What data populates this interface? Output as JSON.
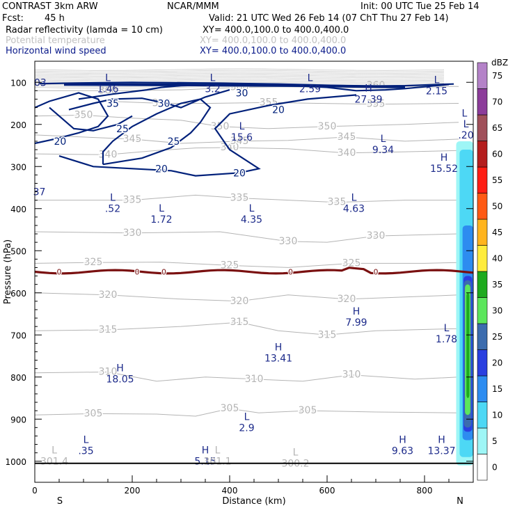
{
  "header": {
    "title": "CONTRAST 3km ARW",
    "org": "NCAR/MMM",
    "init": "Init: 00 UTC Tue 25 Feb 14",
    "fcst_label": "Fcst:",
    "fcst_value": "45 h",
    "valid": "Valid: 21 UTC Wed 26 Feb 14 (07 ChT Thu 27 Feb 14)",
    "field1": "Radar reflectivity (lamda = 10 cm)",
    "field1_xy": "XY= 400.0,100.0 to 400.0,400.0",
    "field2": "Potential temperature",
    "field2_xy": "XY= 400.0,100.0 to 400.0,400.0",
    "field3": "Horizontal wind speed",
    "field3_xy": "XY= 400.0,100.0 to 400.0,400.0"
  },
  "colors": {
    "wind": "#00207a",
    "theta": "#b4b4b4",
    "freezing": "#7a1010",
    "label": "#1c2a8a"
  },
  "chart_data": {
    "type": "cross-section",
    "xlabel": "Distance (km)",
    "ylabel": "Pressure (hPa)",
    "xlim": [
      0,
      900
    ],
    "ylim": [
      1050,
      50
    ],
    "x_ticks": [
      0,
      200,
      400,
      600,
      800
    ],
    "y_ticks": [
      100,
      200,
      300,
      400,
      500,
      600,
      700,
      800,
      900,
      1000
    ],
    "end_labels": {
      "left": "S",
      "right": "N"
    },
    "colorbar": {
      "unit": "dBZ",
      "levels": [
        0,
        5,
        10,
        15,
        20,
        25,
        30,
        35,
        40,
        45,
        50,
        55,
        60,
        65,
        70,
        75
      ],
      "colors": [
        "#ffffff",
        "#9ef6f6",
        "#4dd8f5",
        "#2d8cf0",
        "#2a3fe0",
        "#3c6cae",
        "#5ce65c",
        "#1eaa1e",
        "#ffec3c",
        "#ffb41e",
        "#ff5a14",
        "#ff1e14",
        "#b41e1e",
        "#a0505a",
        "#8c3c9a",
        "#b482c8"
      ]
    },
    "wind_speed_contours": [
      20,
      25,
      30,
      35
    ],
    "potential_temperature_contours": [
      305,
      310,
      315,
      320,
      325,
      330,
      335,
      340,
      345,
      350,
      355,
      360
    ],
    "freezing_level_label": "0",
    "annotations": [
      {
        "kind": "L",
        "value": "1.46",
        "x": 150,
        "p": 100
      },
      {
        "kind": "L",
        "value": "3.2",
        "x": 365,
        "p": 100
      },
      {
        "kind": "L",
        "value": "2.59",
        "x": 565,
        "p": 100
      },
      {
        "kind": "L",
        "value": "2.15",
        "x": 825,
        "p": 105
      },
      {
        "kind": "H",
        "value": "27.39",
        "x": 685,
        "p": 125
      },
      {
        "kind": "L",
        "value": "15.6",
        "x": 425,
        "p": 215
      },
      {
        "kind": "L",
        "value": "9.34",
        "x": 715,
        "p": 245
      },
      {
        "kind": "H",
        "value": "15.52",
        "x": 840,
        "p": 290
      },
      {
        "kind": "L",
        "value": ".52",
        "x": 160,
        "p": 385
      },
      {
        "kind": "L",
        "value": "1.72",
        "x": 260,
        "p": 410
      },
      {
        "kind": "L",
        "value": "4.35",
        "x": 445,
        "p": 410
      },
      {
        "kind": "L",
        "value": "4.63",
        "x": 655,
        "p": 385
      },
      {
        "kind": "H",
        "value": "7.99",
        "x": 660,
        "p": 655
      },
      {
        "kind": "L",
        "value": "1.78",
        "x": 845,
        "p": 695
      },
      {
        "kind": "H",
        "value": "13.41",
        "x": 500,
        "p": 740
      },
      {
        "kind": "H",
        "value": "18.05",
        "x": 175,
        "p": 790
      },
      {
        "kind": "L",
        "value": "2.9",
        "x": 435,
        "p": 905
      },
      {
        "kind": "L",
        "value": ".35",
        "x": 105,
        "p": 960
      },
      {
        "kind": "H",
        "value": "9.63",
        "x": 755,
        "p": 960
      },
      {
        "kind": "H",
        "value": "13.37",
        "x": 835,
        "p": 960
      },
      {
        "kind": "H",
        "value": "5.15",
        "x": 350,
        "p": 985
      },
      {
        "kind": "L",
        "value": "300.2",
        "x": 535,
        "p": 990
      },
      {
        "kind": "L",
        "value": "301.4",
        "x": 40,
        "p": 985
      },
      {
        "kind": "L",
        "value": "301.1",
        "x": 375,
        "p": 985
      },
      {
        "kind": "L",
        "value": "",
        "x": 882,
        "p": 185
      },
      {
        "kind": "L",
        "value": ".20",
        "x": 885,
        "p": 210
      }
    ],
    "edge_labels": [
      {
        "text": "03",
        "x": 10,
        "p": 100
      },
      {
        "text": "37",
        "x": 8,
        "p": 360
      }
    ]
  }
}
